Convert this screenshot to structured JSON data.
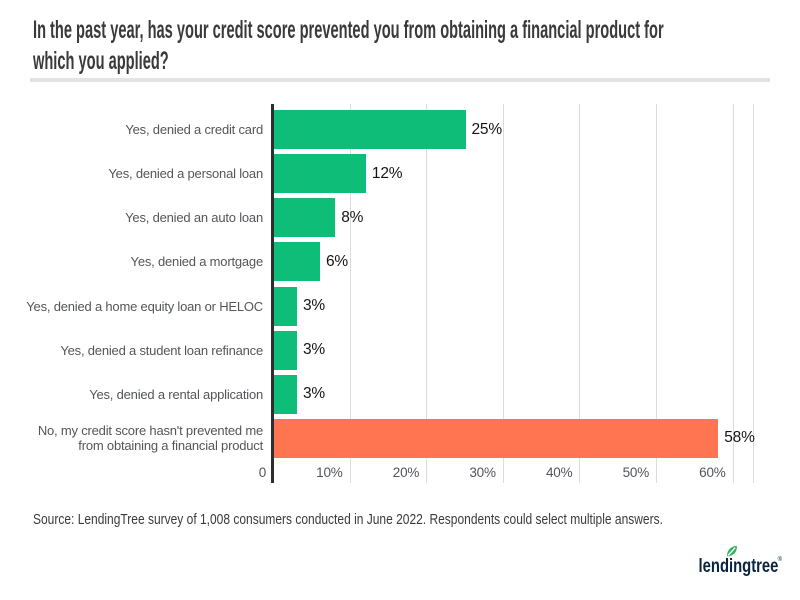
{
  "title": {
    "lines": [
      "In the past year, has your credit score prevented you from obtaining a financial product for",
      "which you applied?"
    ]
  },
  "chart_data": {
    "type": "bar",
    "orientation": "horizontal",
    "title": "In the past year, has your credit score prevented you from obtaining a financial product for which you applied?",
    "categories": [
      "Yes, denied a credit card",
      "Yes, denied a personal loan",
      "Yes, denied an auto loan",
      "Yes, denied a mortgage",
      "Yes, denied a home equity loan or HELOC",
      "Yes, denied a student loan refinance",
      "Yes, denied a rental application",
      "No, my credit score hasn't prevented me\nfrom obtaining a financial product"
    ],
    "values": [
      25,
      12,
      8,
      6,
      3,
      3,
      3,
      58
    ],
    "value_labels": [
      "25%",
      "12%",
      "8%",
      "6%",
      "3%",
      "3%",
      "3%",
      "58%"
    ],
    "bar_colors": [
      "#0EBD78",
      "#0EBD78",
      "#0EBD78",
      "#0EBD78",
      "#0EBD78",
      "#0EBD78",
      "#0EBD78",
      "#FF7451"
    ],
    "xlabel": "",
    "ylabel": "",
    "xlim": [
      0,
      60
    ],
    "grid": true,
    "x_ticks": [
      {
        "label": "0",
        "pct": 0
      },
      {
        "label": "10%",
        "pct": 10
      },
      {
        "label": "20%",
        "pct": 20
      },
      {
        "label": "30%",
        "pct": 30
      },
      {
        "label": "40%",
        "pct": 40
      },
      {
        "label": "50%",
        "pct": 50
      },
      {
        "label": "60%",
        "pct": 60
      }
    ],
    "colors": {
      "yes_bar": "#0EBD78",
      "no_bar": "#FF7451",
      "gridline": "#dcdcdc",
      "axis_line": "#2e2e2e",
      "category_text": "#54565a",
      "value_text": "#151515"
    }
  },
  "source": {
    "text": "Source: LendingTree survey of 1,008 consumers conducted in June 2022. Respondents could select multiple answers."
  },
  "logo": {
    "text": "lendingtree",
    "trademark": "®",
    "leaf_color": "#2fb457",
    "text_color": "#0a2342"
  }
}
